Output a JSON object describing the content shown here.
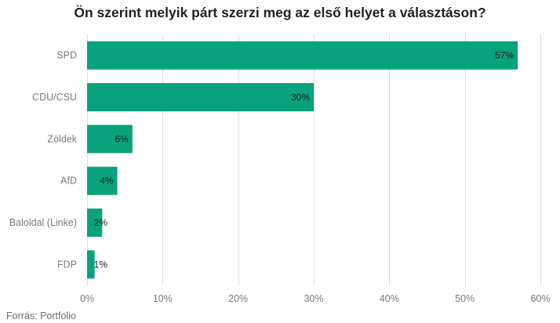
{
  "chart_data": {
    "type": "bar",
    "orientation": "horizontal",
    "title": "Ön szerint melyik párt szerzi meg az első helyet a választáson?",
    "categories": [
      "SPD",
      "CDU/CSU",
      "Zöldek",
      "AfD",
      "Baloldal (Linke)",
      "FDP"
    ],
    "values": [
      57,
      30,
      6,
      4,
      2,
      1
    ],
    "value_labels": [
      "57%",
      "30%",
      "6%",
      "4%",
      "2%",
      "1%"
    ],
    "xlim": [
      0,
      60
    ],
    "x_ticks": [
      0,
      10,
      20,
      30,
      40,
      50,
      60
    ],
    "x_tick_labels": [
      "0%",
      "10%",
      "20%",
      "30%",
      "40%",
      "50%",
      "60%"
    ],
    "xlabel": "",
    "ylabel": "",
    "grid": true,
    "bar_color": "#08a37c"
  },
  "source": {
    "label": "Forrás:",
    "value": "Portfolio"
  }
}
